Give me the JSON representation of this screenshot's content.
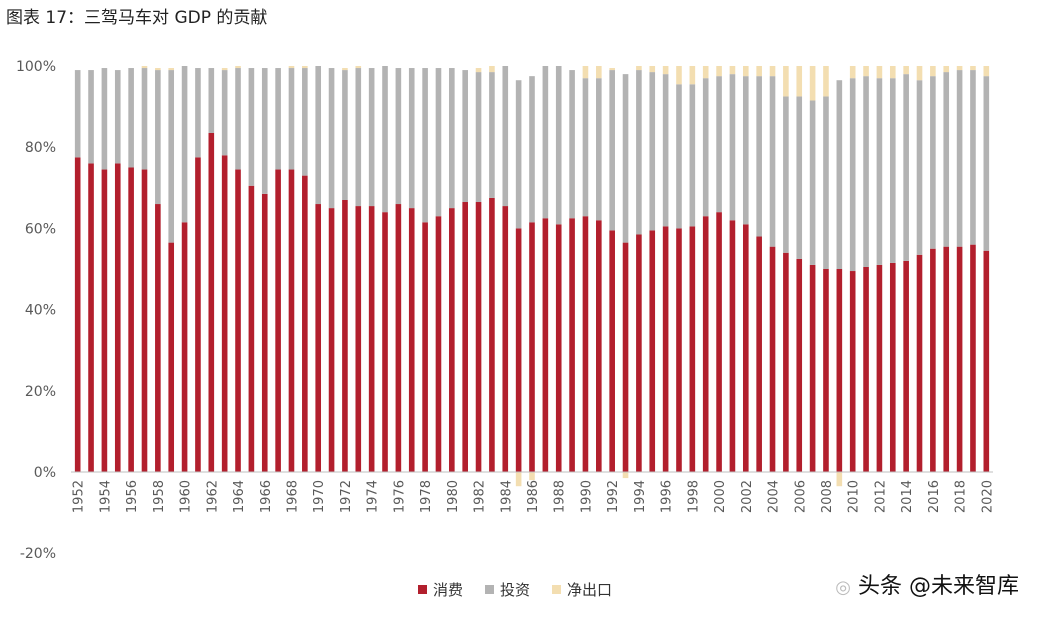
{
  "title": "图表 17：三驾马车对 GDP 的贡献",
  "watermark": "头条 @未来智库",
  "chart_data": {
    "type": "bar",
    "stacked": true,
    "ylim": [
      -20,
      100
    ],
    "yticks": [
      "-20%",
      "0%",
      "20%",
      "40%",
      "60%",
      "80%",
      "100%"
    ],
    "ytick_values": [
      -20,
      0,
      20,
      40,
      60,
      80,
      100
    ],
    "years": [
      1952,
      1953,
      1954,
      1955,
      1956,
      1957,
      1958,
      1959,
      1960,
      1961,
      1962,
      1963,
      1964,
      1965,
      1966,
      1967,
      1968,
      1969,
      1970,
      1971,
      1972,
      1973,
      1974,
      1975,
      1976,
      1977,
      1978,
      1979,
      1980,
      1981,
      1982,
      1983,
      1984,
      1985,
      1986,
      1987,
      1988,
      1989,
      1990,
      1991,
      1992,
      1993,
      1994,
      1995,
      1996,
      1997,
      1998,
      1999,
      2000,
      2001,
      2002,
      2003,
      2004,
      2005,
      2006,
      2007,
      2008,
      2009,
      2010,
      2011,
      2012,
      2013,
      2014,
      2015,
      2016,
      2017,
      2018,
      2019,
      2020
    ],
    "xtick_labels": [
      "1952",
      "1954",
      "1956",
      "1958",
      "1960",
      "1962",
      "1964",
      "1966",
      "1968",
      "1970",
      "1972",
      "1974",
      "1976",
      "1978",
      "1980",
      "1982",
      "1984",
      "1986",
      "1988",
      "1990",
      "1992",
      "1994",
      "1996",
      "1998",
      "2000",
      "2002",
      "2004",
      "2006",
      "2008",
      "2010",
      "2012",
      "2014",
      "2016",
      "2018",
      "2020"
    ],
    "legend_position": "bottom",
    "series": [
      {
        "name": "消费",
        "color": "#b21f2d",
        "values": [
          77.5,
          76,
          74.5,
          76,
          75,
          74.5,
          66,
          56.5,
          61.5,
          77.5,
          83.5,
          78,
          74.5,
          70.5,
          68.5,
          74.5,
          74.5,
          73,
          66,
          65,
          67,
          65.5,
          65.5,
          64,
          66,
          65,
          61.5,
          63,
          65,
          66.5,
          66.5,
          67.5,
          65.5,
          60,
          61.5,
          62.5,
          61,
          62.5,
          63,
          62,
          59.5,
          56.5,
          58.5,
          59.5,
          60.5,
          60,
          60.5,
          63,
          64,
          62,
          61,
          58,
          55.5,
          54,
          52.5,
          51,
          50,
          50,
          49.5,
          50.5,
          51,
          51.5,
          52,
          53.5,
          55,
          55.5,
          55.5,
          56,
          54.5
        ]
      },
      {
        "name": "投资",
        "color": "#b3b3b3",
        "values": [
          21.5,
          23,
          25,
          23,
          24.5,
          25,
          33,
          42.5,
          38.5,
          22,
          16,
          21,
          25,
          29,
          31,
          25,
          25,
          26.5,
          34,
          34.5,
          32,
          34,
          34,
          36,
          33.5,
          34.5,
          38,
          36.5,
          34.5,
          32.5,
          32,
          31,
          34.5,
          36.5,
          36,
          37.5,
          39,
          36.5,
          34,
          35,
          39.5,
          41.5,
          40.5,
          39,
          37.5,
          35.5,
          35,
          34,
          33.5,
          36,
          36.5,
          39.5,
          42,
          38.5,
          40,
          40.5,
          42.5,
          46.5,
          47.5,
          47,
          46,
          45.5,
          46,
          43,
          42.5,
          43,
          43.5,
          43,
          43
        ]
      },
      {
        "name": "净出口",
        "color": "#f3deb1",
        "values": [
          0,
          0,
          0,
          0,
          0,
          0.5,
          0.5,
          0.5,
          0,
          0,
          0,
          0.5,
          0.5,
          0,
          0,
          0,
          0.5,
          0.5,
          0,
          0,
          0.5,
          0.5,
          0,
          0,
          0,
          0,
          0,
          0,
          0,
          0,
          1,
          1.5,
          0,
          -3.5,
          -2,
          0,
          0,
          0,
          3,
          3,
          0.5,
          -1.5,
          1,
          1.5,
          2,
          4.5,
          4.5,
          3,
          2.5,
          2,
          2.5,
          2.5,
          2.5,
          7.5,
          7.5,
          8.5,
          7.5,
          -3.5,
          3,
          2.5,
          3,
          3,
          2,
          3.5,
          2.5,
          1.5,
          1,
          1,
          2.5
        ]
      }
    ]
  }
}
